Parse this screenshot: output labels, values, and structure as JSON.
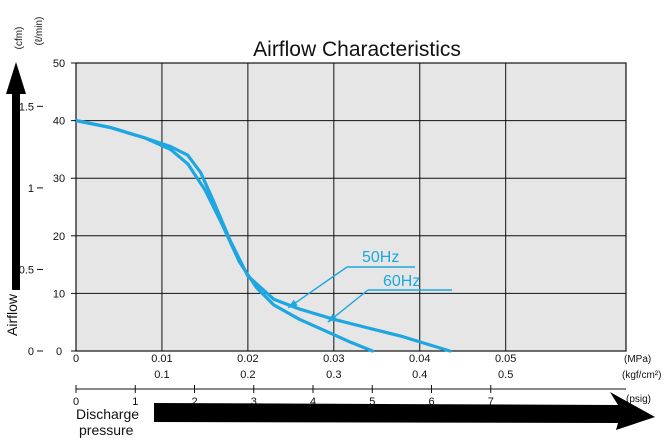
{
  "chart_data": {
    "type": "line",
    "title": "Airflow Characteristics",
    "ylabel": "Airflow",
    "xlabel": "Discharge pressure",
    "y_units": {
      "primary": "(ℓ/min)",
      "secondary": "(cfm)"
    },
    "x_units": {
      "mpa": "(MPa)",
      "kgf": "(kgf/cm²)",
      "psig": "(psig)"
    },
    "ylim": [
      0,
      50
    ],
    "xlim": [
      0,
      0.064
    ],
    "grid": true,
    "y_ticks": [
      "0",
      "10",
      "20",
      "30",
      "40",
      "50"
    ],
    "y_cfm_ticks": [
      "0",
      "0.5",
      "1",
      "1.5"
    ],
    "x_mpa_ticks": [
      "0",
      "0.01",
      "0.02",
      "0.03",
      "0.04",
      "0.05"
    ],
    "x_kgf_ticks": [
      "",
      "0.1",
      "0.2",
      "0.3",
      "0.4",
      "0.5"
    ],
    "x_psig_ticks": [
      "0",
      "1",
      "2",
      "3",
      "4",
      "5",
      "6",
      "7"
    ],
    "series": [
      {
        "name": "50Hz",
        "x": [
          0,
          0.004,
          0.008,
          0.011,
          0.013,
          0.015,
          0.017,
          0.019,
          0.021,
          0.023,
          0.026,
          0.029,
          0.032,
          0.0345
        ],
        "y": [
          40,
          38.8,
          37,
          35,
          32.5,
          28,
          22,
          15.5,
          11,
          8,
          5.5,
          3.5,
          1.5,
          0
        ]
      },
      {
        "name": "60Hz",
        "x": [
          0,
          0.004,
          0.008,
          0.011,
          0.013,
          0.0145,
          0.016,
          0.018,
          0.02,
          0.023,
          0.026,
          0.03,
          0.034,
          0.038,
          0.0435
        ],
        "y": [
          40,
          38.8,
          37,
          35.5,
          34,
          31,
          26,
          19,
          13,
          9,
          7.3,
          5.5,
          4,
          2.5,
          0
        ]
      }
    ]
  }
}
